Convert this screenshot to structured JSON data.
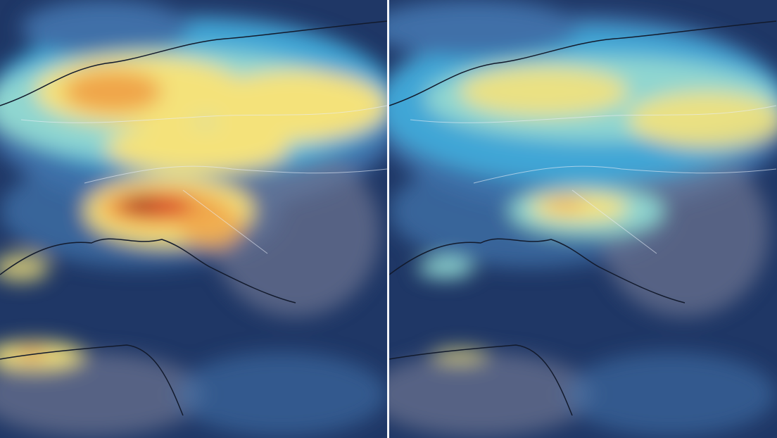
{
  "panels": [
    {
      "id": "left",
      "state": "higher concentration"
    },
    {
      "id": "right",
      "state": "lower concentration"
    }
  ],
  "colors": {
    "ocean_low": "#1f3766",
    "low": "#3f6fa8",
    "mid_low": "#3fa6d6",
    "mid": "#8fd6d0",
    "mid_high": "#f4e27a",
    "high": "#f0a54a",
    "very_high": "#d9482a",
    "peak": "#8b1a14",
    "land_low": "#6e7592",
    "borders": "#e8ecf6",
    "coastline": "#121a2c",
    "divider": "#f2f4f8"
  }
}
